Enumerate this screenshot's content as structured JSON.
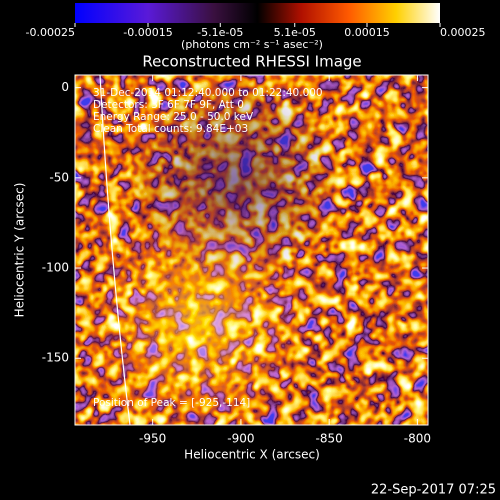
{
  "chart_data": {
    "type": "image",
    "title": "Reconstructed RHESSI Image",
    "xlabel": "Heliocentric X (arcsec)",
    "ylabel": "Heliocentric Y (arcsec)",
    "xlim": [
      -994,
      -794
    ],
    "xticks": [
      -950,
      -900,
      -850,
      -800
    ],
    "ylim": [
      -187,
      7
    ],
    "yticks": [
      0,
      -50,
      -100,
      -150
    ],
    "colorbar": {
      "label": "(photons cm⁻² s⁻¹ asec⁻²)",
      "lim": [
        -0.00025,
        0.00025
      ],
      "ticks": [
        -0.00025,
        -0.00015,
        {
          "value": -5.1e-05,
          "label": "-5.1e-05"
        },
        {
          "value": 5.1e-05,
          "label": "5.1e-05"
        },
        0.00015,
        0.00025
      ]
    },
    "annotations": [
      "31-Dec-2014 01:12:40.000 to 01:22:40.000",
      "Detectors: 3F 6F 7F 9F, Att 0",
      "Energy Range: 25.0 - 50.0 keV",
      "Clean    Total counts: 9.84E+03",
      "Position of Peak = [-925,-114]"
    ],
    "timestamp": "22-Sep-2017 07:25"
  }
}
